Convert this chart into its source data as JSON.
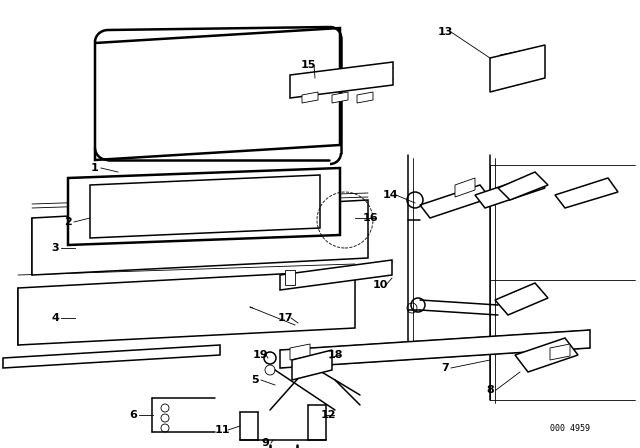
{
  "bg_color": "#ffffff",
  "lc": "#000000",
  "ref_code": "000 4959",
  "figsize": [
    6.4,
    4.48
  ],
  "dpi": 100
}
